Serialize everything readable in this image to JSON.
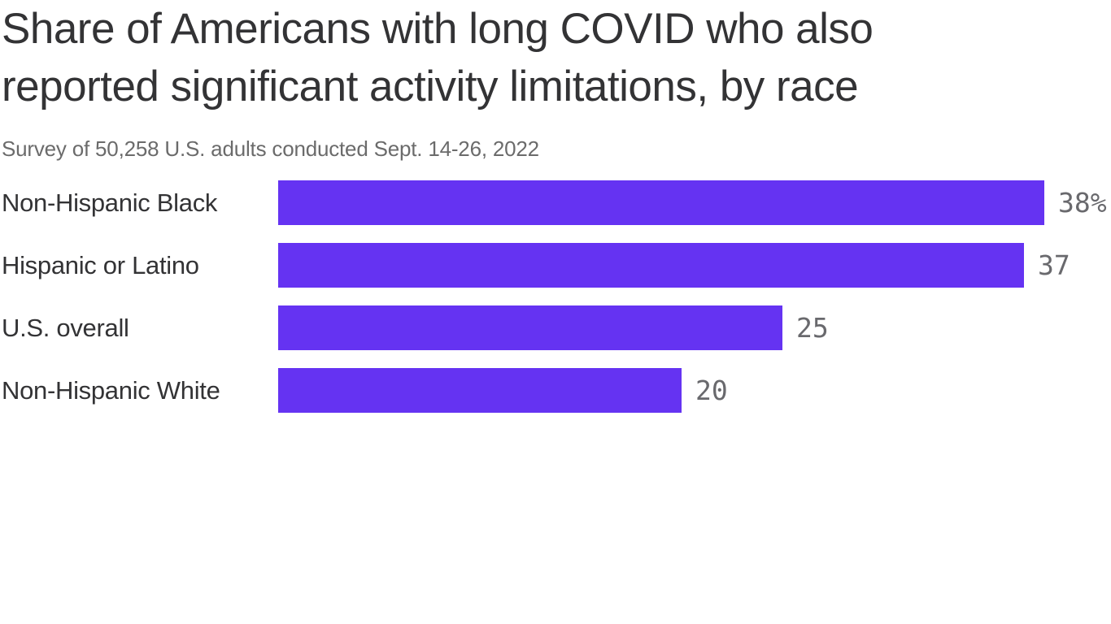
{
  "chart_data": {
    "type": "bar",
    "orientation": "horizontal",
    "title": "Share of Americans with long COVID who also reported significant activity limitations, by race",
    "subtitle": "Survey of 50,258 U.S. adults conducted Sept. 14-26, 2022",
    "categories": [
      "Non-Hispanic Black",
      "Hispanic or Latino",
      "U.S. overall",
      "Non-Hispanic White"
    ],
    "values": [
      38,
      37,
      25,
      20
    ],
    "value_labels": [
      "38%",
      "37",
      "25",
      "20"
    ],
    "unit": "percent",
    "xlim": [
      0,
      38
    ],
    "grid": false,
    "legend": false,
    "colors": {
      "bar": "#6533f2",
      "title_text": "#333335",
      "subtitle_text": "#6b6b6b",
      "category_text": "#333335",
      "value_text": "#69696d",
      "background": "#ffffff"
    }
  }
}
